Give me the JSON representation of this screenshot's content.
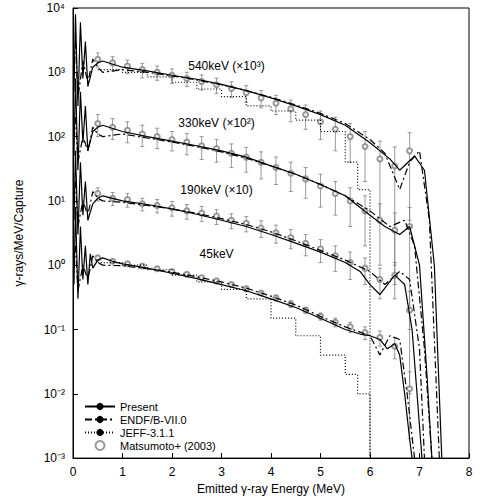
{
  "chart_data": {
    "type": "line",
    "x_label": "Emitted γ-ray Energy (MeV)",
    "y_label": "γ-rays/MeV/Capture",
    "xlim": [
      0,
      8
    ],
    "xticks": [
      0,
      1,
      2,
      3,
      4,
      5,
      6,
      7,
      8
    ],
    "ylim": [
      0.001,
      10000
    ],
    "yticks": [
      {
        "value": 0.001,
        "label": "10⁻³"
      },
      {
        "value": 0.01,
        "label": "10⁻²"
      },
      {
        "value": 0.1,
        "label": "10⁻¹"
      },
      {
        "value": 1,
        "label": "10⁰"
      },
      {
        "value": 10,
        "label": "10¹"
      },
      {
        "value": 100,
        "label": "10²"
      },
      {
        "value": 1000,
        "label": "10³"
      },
      {
        "value": 10000,
        "label": "10⁴"
      }
    ],
    "log": "y",
    "grid": false,
    "legend": "lower left",
    "annotations": [
      "540keV (×10³)",
      "330keV (×10²)",
      "190keV (×10)",
      "45keV"
    ],
    "series": [
      {
        "name": "Present",
        "type": "line",
        "color": "#000000",
        "line_style": "solid",
        "marker": "none",
        "curves": [
          {
            "x": [
              0.02,
              0.05,
              0.1,
              0.15,
              0.2,
              0.25,
              0.3,
              0.35,
              0.4,
              0.5,
              0.6,
              0.8,
              1,
              1.5,
              2,
              2.5,
              3,
              3.5,
              4,
              4.5,
              5,
              5.5,
              5.8,
              6.0,
              6.2,
              6.35,
              6.5,
              6.6,
              6.7,
              6.8,
              6.85
            ],
            "values": [
              0.5,
              8,
              0.3,
              4,
              0.6,
              2,
              0.5,
              1.5,
              0.9,
              1.2,
              1.3,
              1.15,
              1.05,
              0.9,
              0.75,
              0.62,
              0.5,
              0.4,
              0.3,
              0.22,
              0.15,
              0.1,
              0.085,
              0.08,
              0.07,
              0.05,
              0.06,
              0.04,
              0.01,
              0.002,
              0.001
            ]
          },
          {
            "x": [
              0.02,
              0.05,
              0.1,
              0.15,
              0.2,
              0.25,
              0.3,
              0.4,
              0.5,
              0.6,
              1,
              1.5,
              2,
              2.5,
              3,
              3.5,
              4,
              4.5,
              5,
              5.5,
              5.8,
              6.0,
              6.2,
              6.5,
              6.7,
              6.85,
              6.95,
              7.05
            ],
            "values": [
              5,
              60,
              3,
              40,
              6,
              20,
              5,
              9,
              11,
              12,
              10,
              8.8,
              7.5,
              6.2,
              5,
              4,
              3,
              2.2,
              1.6,
              1.1,
              0.8,
              0.5,
              0.35,
              0.7,
              0.5,
              0.1,
              0.01,
              0.001
            ]
          },
          {
            "x": [
              0.02,
              0.05,
              0.1,
              0.15,
              0.2,
              0.25,
              0.3,
              0.4,
              0.5,
              0.6,
              1,
              1.5,
              2,
              2.5,
              3,
              3.5,
              4,
              4.5,
              5,
              5.5,
              6.0,
              6.3,
              6.6,
              6.8,
              7.0,
              7.15,
              7.25
            ],
            "values": [
              50,
              800,
              30,
              500,
              80,
              300,
              60,
              120,
              140,
              150,
              120,
              100,
              85,
              72,
              60,
              48,
              35,
              26,
              18,
              12,
              6,
              4,
              3,
              4,
              1,
              0.02,
              0.001
            ]
          },
          {
            "x": [
              0.02,
              0.05,
              0.1,
              0.15,
              0.2,
              0.25,
              0.3,
              0.4,
              0.5,
              0.6,
              1,
              1.5,
              2,
              2.5,
              3,
              3.5,
              4,
              4.5,
              5,
              5.5,
              6.0,
              6.4,
              6.6,
              6.9,
              7.1,
              7.3,
              7.45
            ],
            "values": [
              500,
              8000,
              300,
              6000,
              800,
              3000,
              600,
              1200,
              1400,
              1500,
              1200,
              1050,
              900,
              780,
              650,
              520,
              400,
              300,
              220,
              150,
              80,
              45,
              30,
              50,
              30,
              1,
              0.001
            ]
          }
        ]
      },
      {
        "name": "ENDF/B-VII.0",
        "type": "line",
        "color": "#000000",
        "line_style": "dashdot",
        "marker": "none",
        "curves": [
          {
            "x": [
              0.05,
              0.1,
              0.2,
              0.3,
              0.4,
              0.5,
              0.6,
              1,
              1.5,
              2,
              2.5,
              3,
              3.5,
              4,
              4.5,
              5,
              5.5,
              6.0,
              6.2,
              6.4,
              6.6,
              6.75,
              6.9
            ],
            "values": [
              2,
              0.4,
              1,
              0.6,
              1.4,
              1.1,
              1.0,
              0.98,
              0.88,
              0.78,
              0.66,
              0.55,
              0.44,
              0.33,
              0.24,
              0.16,
              0.11,
              0.08,
              0.04,
              0.08,
              0.07,
              0.01,
              0.001
            ]
          },
          {
            "x": [
              0.05,
              0.1,
              0.2,
              0.3,
              0.4,
              0.5,
              0.6,
              1,
              1.5,
              2,
              2.5,
              3,
              3.5,
              4,
              4.5,
              5,
              5.5,
              6.0,
              6.3,
              6.6,
              6.8,
              7.0,
              7.1
            ],
            "values": [
              20,
              4,
              10,
              6,
              14,
              11,
              10,
              9.5,
              8.5,
              7.5,
              6.4,
              5.3,
              4.3,
              3.3,
              2.4,
              1.7,
              1.2,
              0.8,
              0.5,
              0.8,
              0.6,
              0.05,
              0.001
            ]
          },
          {
            "x": [
              0.05,
              0.1,
              0.2,
              0.3,
              0.4,
              0.5,
              0.6,
              1,
              1.5,
              2,
              2.5,
              3,
              3.5,
              4,
              4.5,
              5,
              5.5,
              6.0,
              6.4,
              6.7,
              6.9,
              7.1,
              7.25
            ],
            "values": [
              200,
              40,
              100,
              60,
              140,
              110,
              100,
              110,
              95,
              82,
              70,
              58,
              46,
              35,
              26,
              18,
              12,
              7,
              4,
              5,
              2,
              0.05,
              0.001
            ]
          },
          {
            "x": [
              0.05,
              0.1,
              0.2,
              0.3,
              0.4,
              0.5,
              0.6,
              1,
              1.5,
              2,
              2.5,
              3,
              3.5,
              4,
              4.5,
              5,
              5.5,
              6.0,
              6.3,
              6.6,
              6.8,
              7.0,
              7.2,
              7.4
            ],
            "values": [
              3000,
              400,
              1500,
              700,
              1600,
              1200,
              1000,
              1100,
              1000,
              880,
              760,
              640,
              520,
              410,
              310,
              230,
              160,
              90,
              55,
              15,
              40,
              60,
              5,
              0.001
            ]
          }
        ]
      },
      {
        "name": "JEFF-3.1.1",
        "type": "step",
        "color": "#000000",
        "line_style": "dotted",
        "marker": "none",
        "curves": [
          {
            "x": [
              0.5,
              1,
              1.5,
              2,
              2.5,
              3,
              3.5,
              4,
              4.5,
              5,
              5.5,
              5.75,
              6
            ],
            "values": [
              1.1,
              1.0,
              0.85,
              0.7,
              0.55,
              0.42,
              0.3,
              0.15,
              0.08,
              0.04,
              0.02,
              0.01,
              0.001
            ]
          },
          {
            "x": [
              0.5,
              1,
              1.5,
              2,
              2.5,
              3,
              3.5,
              4,
              4.5,
              5,
              5.5,
              5.75,
              6
            ],
            "values": [
              1100,
              1000,
              850,
              700,
              550,
              420,
              300,
              250,
              180,
              120,
              40,
              15,
              0.001
            ]
          }
        ]
      },
      {
        "name": "Matsumoto+ (2003)",
        "type": "scatter",
        "color": "#808080",
        "line_style": "solid",
        "marker": "circle",
        "curves": [
          {
            "x": [
              0.5,
              0.8,
              1.1,
              1.4,
              1.7,
              2.0,
              2.3,
              2.6,
              2.9,
              3.2,
              3.5,
              3.8,
              4.1,
              4.4,
              4.7,
              5.0,
              5.3,
              5.6,
              5.9,
              6.2,
              6.5,
              6.8
            ],
            "values": [
              1.3,
              1.15,
              1.05,
              0.97,
              0.88,
              0.8,
              0.72,
              0.64,
              0.57,
              0.5,
              0.43,
              0.37,
              0.31,
              0.25,
              0.2,
              0.16,
              0.13,
              0.11,
              0.09,
              0.075,
              0.055,
              0.012
            ],
            "errors": [
              0.1,
              0.08,
              0.07,
              0.06,
              0.06,
              0.05,
              0.05,
              0.05,
              0.04,
              0.04,
              0.04,
              0.03,
              0.03,
              0.03,
              0.02,
              0.02,
              0.02,
              0.02,
              0.02,
              0.02,
              0.02,
              0.01
            ]
          },
          {
            "x": [
              0.5,
              0.8,
              1.1,
              1.4,
              1.7,
              2.0,
              2.3,
              2.6,
              2.9,
              3.2,
              3.5,
              3.8,
              4.1,
              4.4,
              4.7,
              5.0,
              5.3,
              5.6,
              5.9,
              6.2,
              6.5,
              6.8
            ],
            "values": [
              13,
              11,
              10.5,
              9,
              8.5,
              7.8,
              7,
              6.5,
              5.8,
              5,
              4.5,
              3.8,
              3.2,
              2.7,
              2.2,
              1.8,
              1.4,
              1.1,
              0.9,
              0.6,
              0.7,
              0.2
            ],
            "errors": [
              3,
              2.5,
              2.5,
              2,
              2,
              2,
              1.8,
              1.7,
              1.5,
              1.3,
              1.2,
              1.1,
              1,
              0.9,
              0.8,
              0.7,
              0.6,
              0.5,
              0.4,
              0.3,
              0.4,
              0.19
            ]
          },
          {
            "x": [
              0.5,
              0.8,
              1.1,
              1.4,
              1.7,
              2.0,
              2.3,
              2.6,
              2.9,
              3.2,
              3.5,
              3.8,
              4.1,
              4.4,
              4.7,
              5.0,
              5.3,
              5.6,
              5.9,
              6.2,
              6.5,
              6.8
            ],
            "values": [
              160,
              140,
              125,
              110,
              100,
              90,
              82,
              72,
              65,
              55,
              48,
              40,
              33,
              27,
              22,
              17,
              13,
              10,
              7,
              5,
              3.5,
              4
            ],
            "errors": [
              60,
              50,
              45,
              40,
              35,
              30,
              30,
              28,
              25,
              22,
              20,
              18,
              15,
              13,
              11,
              9,
              7,
              6,
              5,
              4,
              3,
              3.9
            ]
          },
          {
            "x": [
              0.5,
              0.8,
              1.1,
              1.4,
              1.7,
              2.0,
              2.3,
              2.6,
              2.9,
              3.2,
              3.5,
              3.8,
              4.1,
              4.4,
              4.7,
              5.0,
              5.3,
              5.6,
              5.9,
              6.2,
              6.5,
              6.8
            ],
            "values": [
              1600,
              1400,
              1250,
              1100,
              1000,
              900,
              800,
              720,
              640,
              560,
              480,
              400,
              330,
              270,
              220,
              170,
              130,
              100,
              70,
              45,
              35,
              60
            ],
            "errors": [
              400,
              350,
              300,
              280,
              250,
              230,
              200,
              190,
              170,
              150,
              140,
              120,
              110,
              100,
              90,
              80,
              70,
              60,
              50,
              40,
              34,
              55
            ]
          }
        ]
      }
    ]
  }
}
